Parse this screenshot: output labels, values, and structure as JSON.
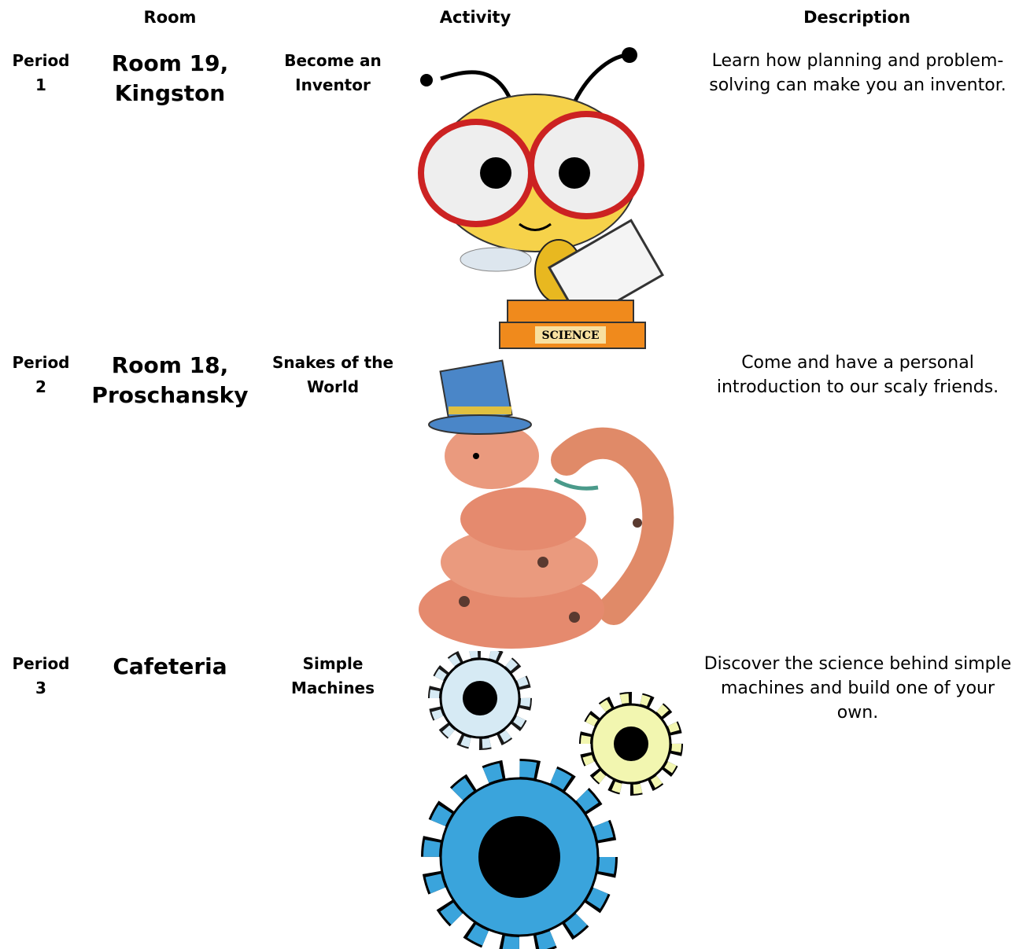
{
  "header": {
    "columns": [
      "Room",
      "Activity",
      "Description"
    ]
  },
  "rows": [
    {
      "period": "Period 1",
      "room": "Room 19, Kingston",
      "activity": "Become an Inventor",
      "description": "Learn how planning and problem-solving can make you an inventor."
    },
    {
      "period": "Period 2",
      "room": "Room 18, Proschansky",
      "activity": "Snakes of the World",
      "description": "Come and have a personal introduction to our scaly friends."
    },
    {
      "period": "Period 3",
      "room": "Cafeteria",
      "activity": "Simple Machines",
      "description": "Discover the science behind simple machines and build one of your own."
    }
  ]
}
